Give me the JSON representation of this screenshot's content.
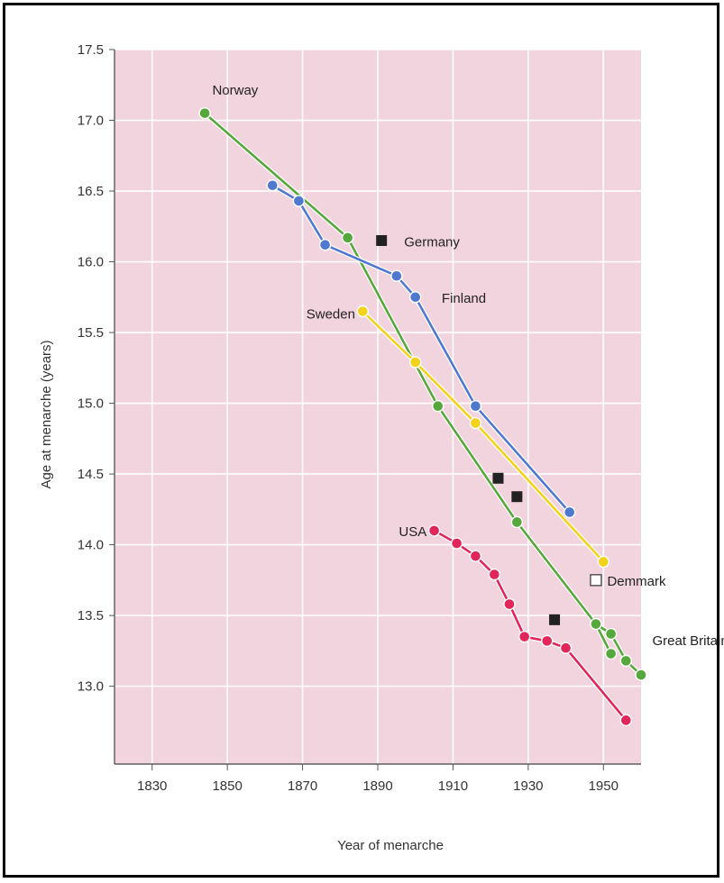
{
  "chart_data": {
    "type": "line",
    "title": "",
    "xlabel": "Year of menarche",
    "ylabel": "Age at menarche (years)",
    "xlim": [
      1820,
      1960
    ],
    "ylim": [
      12.45,
      17.5
    ],
    "x_ticks": [
      "1830",
      "1850",
      "1870",
      "1890",
      "1910",
      "1930",
      "1950"
    ],
    "y_ticks": [
      "17.5",
      "17.0",
      "16.5",
      "16.0",
      "15.5",
      "15.0",
      "14.5",
      "14.0",
      "13.5",
      "13.0"
    ],
    "grid": true,
    "colors": {
      "plot_background": "#f2d4df",
      "grid": "#ffffff",
      "Norway": "#57a83c",
      "Finland": "#4f79cf",
      "Sweden": "#f4d21c",
      "USA": "#e0265a",
      "Germany": "#222222",
      "Denmark": "#ffffff"
    },
    "series": [
      {
        "name": "Norway",
        "marker": "circle",
        "x": [
          1844,
          1882,
          1906,
          1927,
          1948,
          1952
        ],
        "y": [
          17.05,
          16.17,
          14.98,
          14.16,
          13.44,
          13.23
        ]
      },
      {
        "name": "Finland",
        "marker": "circle",
        "x": [
          1862,
          1869,
          1876,
          1895,
          1900,
          1916,
          1941
        ],
        "y": [
          16.54,
          16.43,
          16.12,
          15.9,
          15.75,
          14.98,
          14.23
        ]
      },
      {
        "name": "Sweden",
        "marker": "circle",
        "x": [
          1886,
          1900,
          1916,
          1950
        ],
        "y": [
          15.65,
          15.29,
          14.86,
          13.88
        ]
      },
      {
        "name": "Great Britain",
        "marker": "circle",
        "x": [
          1952,
          1956,
          1960
        ],
        "y": [
          13.37,
          13.18,
          13.08
        ]
      },
      {
        "name": "USA",
        "marker": "circle",
        "x": [
          1905,
          1911,
          1916,
          1921,
          1925,
          1929,
          1935,
          1940,
          1956
        ],
        "y": [
          14.1,
          14.01,
          13.92,
          13.79,
          13.58,
          13.35,
          13.32,
          13.27,
          12.76
        ]
      },
      {
        "name": "Germany",
        "marker": "square-filled",
        "x": [
          1891,
          1922,
          1927,
          1937
        ],
        "y": [
          16.15,
          14.47,
          14.34,
          13.47
        ]
      },
      {
        "name": "Demmark",
        "marker": "square-open",
        "x": [
          1948
        ],
        "y": [
          13.75
        ]
      }
    ],
    "labels": {
      "Norway": "Norway",
      "Germany": "Germany",
      "Finland": "Finland",
      "Sweden": "Sweden",
      "USA": "USA",
      "Demmark": "Demmark",
      "Great Britain": "Great Britain"
    }
  }
}
